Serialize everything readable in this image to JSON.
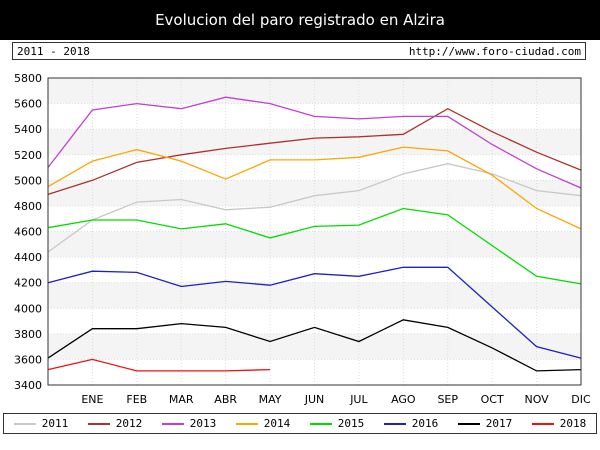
{
  "header": {
    "title": "Evolucion del paro registrado en Alzira",
    "period": "2011 - 2018",
    "website": "http://www.foro-ciudad.com"
  },
  "chart_data": {
    "type": "line",
    "title": "Evolucion del paro registrado en Alzira",
    "xlabel": "",
    "ylabel": "",
    "categories": [
      "",
      "ENE",
      "FEB",
      "MAR",
      "ABR",
      "MAY",
      "JUN",
      "JUL",
      "AGO",
      "SEP",
      "OCT",
      "NOV",
      "DIC"
    ],
    "ylim": [
      3400,
      5800
    ],
    "yticks": [
      3400,
      3600,
      3800,
      4000,
      4200,
      4400,
      4600,
      4800,
      5000,
      5200,
      5400,
      5600,
      5800
    ],
    "grid": true,
    "legend_position": "bottom",
    "series": [
      {
        "name": "2011",
        "color": "#c8c8c8",
        "values": [
          4440,
          4690,
          4830,
          4850,
          4770,
          4790,
          4880,
          4920,
          5050,
          5130,
          5050,
          4920,
          4880
        ]
      },
      {
        "name": "2012",
        "color": "#b03030",
        "values": [
          4890,
          5000,
          5140,
          5200,
          5250,
          5290,
          5330,
          5340,
          5360,
          5560,
          5380,
          5220,
          5080
        ]
      },
      {
        "name": "2013",
        "color": "#c040d0",
        "values": [
          5100,
          5550,
          5600,
          5560,
          5650,
          5600,
          5500,
          5480,
          5500,
          5500,
          5280,
          5090,
          4940
        ]
      },
      {
        "name": "2014",
        "color": "#ffa500",
        "values": [
          4950,
          5150,
          5240,
          5150,
          5010,
          5160,
          5160,
          5180,
          5260,
          5230,
          5040,
          4780,
          4620
        ]
      },
      {
        "name": "2015",
        "color": "#00dd00",
        "values": [
          4630,
          4690,
          4690,
          4620,
          4660,
          4550,
          4640,
          4650,
          4780,
          4730,
          4490,
          4250,
          4190
        ]
      },
      {
        "name": "2016",
        "color": "#2020c0",
        "values": [
          4200,
          4290,
          4280,
          4170,
          4210,
          4180,
          4270,
          4250,
          4320,
          4320,
          4010,
          3700,
          3610
        ]
      },
      {
        "name": "2017",
        "color": "#000000",
        "values": [
          3610,
          3840,
          3840,
          3880,
          3850,
          3740,
          3850,
          3740,
          3910,
          3850,
          3690,
          3510,
          3520
        ]
      },
      {
        "name": "2018",
        "color": "#ee1111",
        "values": [
          3520,
          3600,
          3510,
          3510,
          3510,
          3520,
          null,
          null,
          null,
          null,
          null,
          null,
          null
        ]
      }
    ]
  }
}
